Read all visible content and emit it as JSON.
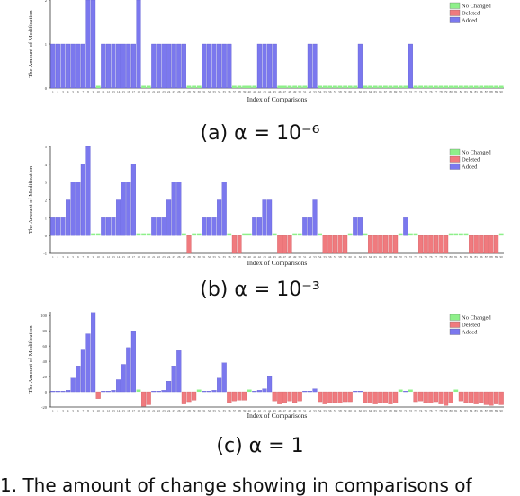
{
  "legend_labels": [
    "No Changed",
    "Deleted",
    "Added"
  ],
  "colors": {
    "no_changed": "#8ef08a",
    "deleted": "#f07a7e",
    "added": "#7b78ee"
  },
  "captions": [
    "(a) α = 10⁻⁶",
    "(b) α = 10⁻³",
    "(c) α = 1"
  ],
  "bottom_caption": "1. The amount of change showing in comparisons of",
  "chart_data": [
    {
      "type": "bar",
      "xlabel": "Index of Comparisons",
      "ylabel": "The Amount of Modification",
      "ylim": [
        0,
        2
      ],
      "yticks": [
        0,
        1,
        2
      ],
      "legend": [
        "No Changed",
        "Deleted",
        "Added"
      ],
      "legend_position": "top-right",
      "x": [
        1,
        2,
        3,
        4,
        5,
        6,
        7,
        8,
        9,
        10,
        11,
        12,
        13,
        14,
        15,
        16,
        17,
        18,
        19,
        20,
        21,
        22,
        23,
        24,
        25,
        26,
        27,
        28,
        29,
        30,
        31,
        32,
        33,
        34,
        35,
        36,
        37,
        38,
        39,
        40,
        41,
        42,
        43,
        44,
        45,
        46,
        47,
        48,
        49,
        50,
        51,
        52,
        53,
        54,
        55,
        56,
        57,
        58,
        59,
        60,
        61,
        62,
        63,
        64,
        65,
        66,
        67,
        68,
        69,
        70,
        71,
        72,
        73,
        74,
        75,
        76,
        77,
        78,
        79,
        80,
        81,
        82,
        83,
        84,
        85,
        86,
        87,
        88,
        89,
        90
      ],
      "series": [
        {
          "name": "Added",
          "values": [
            1,
            1,
            1,
            1,
            1,
            1,
            1,
            2,
            2,
            0,
            1,
            1,
            1,
            1,
            1,
            1,
            1,
            2,
            0,
            0,
            1,
            1,
            1,
            1,
            1,
            1,
            1,
            0,
            0,
            0,
            1,
            1,
            1,
            1,
            1,
            1,
            0,
            0,
            0,
            0,
            0,
            1,
            1,
            1,
            1,
            0,
            0,
            0,
            0,
            0,
            0,
            1,
            1,
            0,
            0,
            0,
            0,
            0,
            0,
            0,
            0,
            1,
            0,
            0,
            0,
            0,
            0,
            0,
            0,
            0,
            0,
            1,
            0,
            0,
            0,
            0,
            0,
            0,
            0,
            0,
            0,
            0,
            0,
            0,
            0,
            0,
            0,
            0,
            0,
            0
          ]
        },
        {
          "name": "Deleted",
          "values": [
            0,
            0,
            0,
            0,
            0,
            0,
            0,
            0,
            0,
            0,
            0,
            0,
            0,
            0,
            0,
            0,
            0,
            0,
            0,
            0,
            0,
            0,
            0,
            0,
            0,
            0,
            0,
            0,
            0,
            0,
            0,
            0,
            0,
            0,
            0,
            0,
            0,
            0,
            0,
            0,
            0,
            0,
            0,
            0,
            0,
            0,
            0,
            0,
            0,
            0,
            0,
            0,
            0,
            0,
            0,
            0,
            0,
            0,
            0,
            0,
            0,
            0,
            0,
            0,
            0,
            0,
            0,
            0,
            0,
            0,
            0,
            0,
            0,
            0,
            0,
            0,
            0,
            0,
            0,
            0,
            0,
            0,
            0,
            0,
            0,
            0,
            0,
            0,
            0,
            0
          ]
        }
      ]
    },
    {
      "type": "bar",
      "xlabel": "Index of Comparisons",
      "ylabel": "The Amount of Modification",
      "ylim": [
        -1,
        5
      ],
      "yticks": [
        -1,
        0,
        1,
        2,
        3,
        4,
        5
      ],
      "legend": [
        "No Changed",
        "Deleted",
        "Added"
      ],
      "legend_position": "top-right",
      "x": [
        1,
        2,
        3,
        4,
        5,
        6,
        7,
        8,
        9,
        10,
        11,
        12,
        13,
        14,
        15,
        16,
        17,
        18,
        19,
        20,
        21,
        22,
        23,
        24,
        25,
        26,
        27,
        28,
        29,
        30,
        31,
        32,
        33,
        34,
        35,
        36,
        37,
        38,
        39,
        40,
        41,
        42,
        43,
        44,
        45,
        46,
        47,
        48,
        49,
        50,
        51,
        52,
        53,
        54,
        55,
        56,
        57,
        58,
        59,
        60,
        61,
        62,
        63,
        64,
        65,
        66,
        67,
        68,
        69,
        70,
        71,
        72,
        73,
        74,
        75,
        76,
        77,
        78,
        79,
        80,
        81,
        82,
        83,
        84,
        85,
        86,
        87,
        88,
        89,
        90
      ],
      "series": [
        {
          "name": "Added",
          "values": [
            1,
            1,
            1,
            2,
            3,
            3,
            4,
            5,
            0,
            0,
            1,
            1,
            1,
            2,
            3,
            3,
            4,
            0,
            0,
            0,
            1,
            1,
            1,
            2,
            3,
            3,
            0,
            0,
            0,
            0,
            1,
            1,
            1,
            2,
            3,
            0,
            0,
            0,
            0,
            0,
            1,
            1,
            2,
            2,
            0,
            0,
            0,
            0,
            0,
            0,
            1,
            1,
            2,
            0,
            0,
            0,
            0,
            0,
            0,
            0,
            1,
            1,
            0,
            0,
            0,
            0,
            0,
            0,
            0,
            0,
            1,
            0,
            0,
            0,
            0,
            0,
            0,
            0,
            0,
            0,
            0,
            0,
            0,
            0,
            0,
            0,
            0,
            0,
            0,
            0
          ]
        },
        {
          "name": "Deleted",
          "values": [
            0,
            0,
            0,
            0,
            0,
            0,
            0,
            0,
            0,
            0,
            0,
            0,
            0,
            0,
            0,
            0,
            0,
            0,
            0,
            0,
            0,
            0,
            0,
            0,
            0,
            0,
            0,
            -1,
            0,
            0,
            0,
            0,
            0,
            0,
            0,
            0,
            -1,
            -1,
            0,
            0,
            0,
            0,
            0,
            0,
            0,
            -1,
            -1,
            -1,
            0,
            0,
            0,
            0,
            0,
            0,
            -1,
            -1,
            -1,
            -1,
            -1,
            0,
            0,
            0,
            0,
            -1,
            -1,
            -1,
            -1,
            -1,
            -1,
            0,
            0,
            0,
            0,
            -1,
            -1,
            -1,
            -1,
            -1,
            -1,
            0,
            0,
            0,
            0,
            -1,
            -1,
            -1,
            -1,
            -1,
            -1,
            0
          ]
        }
      ]
    },
    {
      "type": "bar",
      "xlabel": "Index of Comparisons",
      "ylabel": "The Amount of Modification",
      "ylim": [
        -20,
        105
      ],
      "yticks": [
        -20,
        0,
        20,
        40,
        60,
        80,
        100
      ],
      "legend": [
        "No Changed",
        "Deleted",
        "Added"
      ],
      "legend_position": "top-right",
      "x": [
        1,
        2,
        3,
        4,
        5,
        6,
        7,
        8,
        9,
        10,
        11,
        12,
        13,
        14,
        15,
        16,
        17,
        18,
        19,
        20,
        21,
        22,
        23,
        24,
        25,
        26,
        27,
        28,
        29,
        30,
        31,
        32,
        33,
        34,
        35,
        36,
        37,
        38,
        39,
        40,
        41,
        42,
        43,
        44,
        45,
        46,
        47,
        48,
        49,
        50,
        51,
        52,
        53,
        54,
        55,
        56,
        57,
        58,
        59,
        60,
        61,
        62,
        63,
        64,
        65,
        66,
        67,
        68,
        69,
        70,
        71,
        72,
        73,
        74,
        75,
        76,
        77,
        78,
        79,
        80,
        81,
        82,
        83,
        84,
        85,
        86,
        87,
        88,
        89,
        90
      ],
      "series": [
        {
          "name": "Added",
          "values": [
            1,
            1,
            1,
            2,
            18,
            34,
            56,
            76,
            104,
            0,
            1,
            1,
            2,
            16,
            36,
            58,
            80,
            0,
            0,
            0,
            1,
            1,
            2,
            14,
            34,
            54,
            0,
            0,
            0,
            0,
            1,
            1,
            2,
            18,
            38,
            0,
            0,
            0,
            0,
            0,
            1,
            2,
            4,
            20,
            0,
            0,
            0,
            0,
            0,
            0,
            1,
            1,
            4,
            0,
            0,
            0,
            0,
            0,
            0,
            0,
            1,
            1,
            0,
            0,
            0,
            0,
            0,
            0,
            0,
            0,
            1,
            0,
            0,
            0,
            0,
            0,
            0,
            0,
            0,
            0,
            0,
            0,
            0,
            0,
            0,
            0,
            0,
            0,
            0,
            0
          ]
        },
        {
          "name": "Deleted",
          "values": [
            0,
            0,
            0,
            0,
            0,
            0,
            0,
            0,
            0,
            -9,
            0,
            0,
            0,
            0,
            0,
            0,
            0,
            0,
            -19,
            -17,
            0,
            0,
            0,
            0,
            0,
            0,
            -16,
            -13,
            -11,
            0,
            0,
            0,
            0,
            0,
            0,
            -14,
            -12,
            -11,
            -11,
            0,
            0,
            0,
            0,
            0,
            -12,
            -16,
            -14,
            -12,
            -14,
            -12,
            0,
            0,
            0,
            -13,
            -16,
            -14,
            -14,
            -15,
            -13,
            -13,
            0,
            0,
            -14,
            -15,
            -16,
            -14,
            -15,
            -16,
            -15,
            0,
            0,
            0,
            -13,
            -12,
            -14,
            -15,
            -13,
            -16,
            -18,
            -15,
            0,
            -12,
            -14,
            -15,
            -16,
            -14,
            -17,
            -18,
            -16,
            -17
          ]
        }
      ]
    }
  ]
}
